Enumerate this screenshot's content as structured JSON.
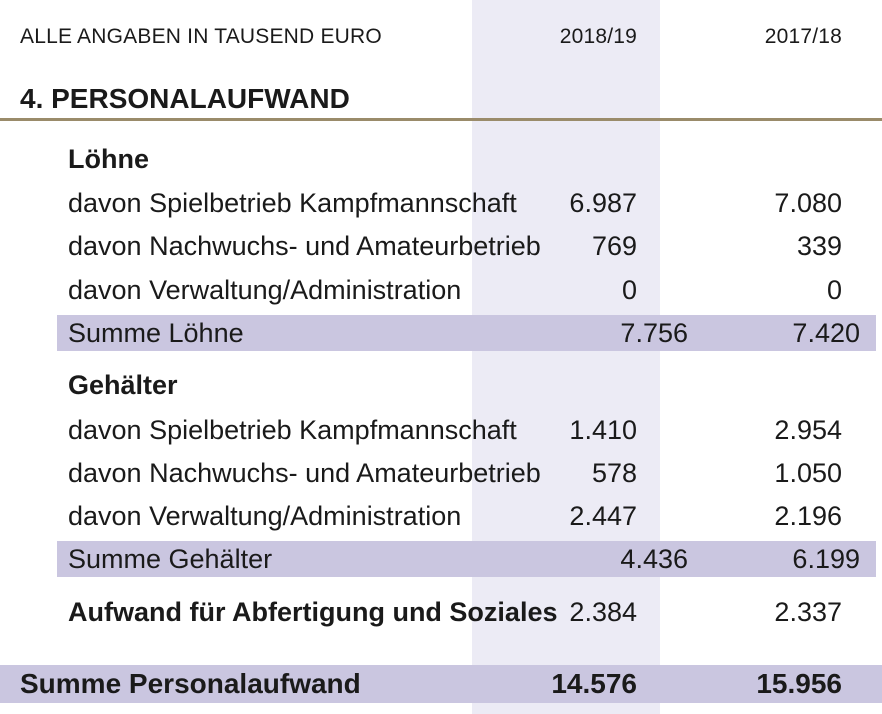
{
  "header": {
    "unit_label": "ALLE ANGABEN IN TAUSEND EURO",
    "col1": "2018/19",
    "col2": "2017/18"
  },
  "title": "4.  PERSONALAUFWAND",
  "loehne": {
    "heading": "Löhne",
    "rows": [
      {
        "label": "davon Spielbetrieb Kampfmannschaft",
        "v1": "6.987",
        "v2": "7.080"
      },
      {
        "label": "davon Nachwuchs- und Amateurbetrieb",
        "v1": "769",
        "v2": "339"
      },
      {
        "label": "davon Verwaltung/Administration",
        "v1": "0",
        "v2": "0"
      }
    ],
    "sum": {
      "label": "Summe Löhne",
      "v1": "7.756",
      "v2": "7.420"
    }
  },
  "gehaelter": {
    "heading": "Gehälter",
    "rows": [
      {
        "label": "davon Spielbetrieb Kampfmannschaft",
        "v1": "1.410",
        "v2": "2.954"
      },
      {
        "label": "davon Nachwuchs- und Amateurbetrieb",
        "v1": "578",
        "v2": "1.050"
      },
      {
        "label": "davon Verwaltung/Administration",
        "v1": "2.447",
        "v2": "2.196"
      }
    ],
    "sum": {
      "label": "Summe Gehälter",
      "v1": "4.436",
      "v2": "6.199"
    }
  },
  "aufwand": {
    "label": "Aufwand für Abfertigung und Soziales",
    "v1": "2.384",
    "v2": "2.337"
  },
  "total": {
    "label": "Summe Personalaufwand",
    "v1": "14.576",
    "v2": "15.956"
  },
  "colors": {
    "column_shade": "#ecebf5",
    "sum_band": "#cac6e0",
    "title_rule": "#9a8b6a"
  }
}
